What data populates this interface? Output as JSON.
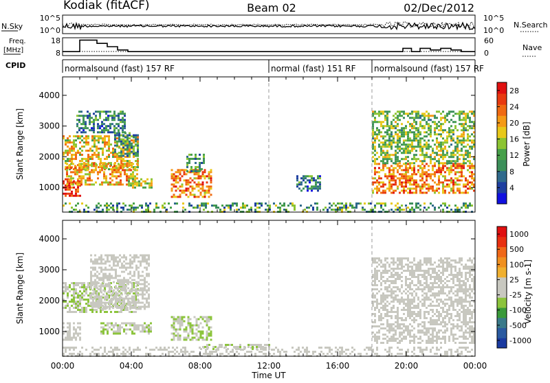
{
  "header": {
    "station": "Kodiak (fitACF)",
    "beam": "Beam 02",
    "date": "02/Dec/2012"
  },
  "noise_panel": {
    "left_label": "N.Sky",
    "right_label": "N.Search",
    "left_ticks": [
      "10^5",
      "10^0"
    ],
    "right_ticks": [
      "10^5",
      "10^0"
    ]
  },
  "freq_panel": {
    "left_label_line1": "Freq.",
    "left_label_line2": "[MHz]",
    "right_label": "Nave",
    "left_ticks": [
      "18",
      "8"
    ],
    "right_ticks": [
      "60",
      "0"
    ],
    "freq_steps": [
      {
        "t": 0,
        "v": 10
      },
      {
        "t": 1.0,
        "v": 17
      },
      {
        "t": 2.0,
        "v": 15
      },
      {
        "t": 2.6,
        "v": 13
      },
      {
        "t": 3.2,
        "v": 11
      },
      {
        "t": 3.8,
        "v": 10
      },
      {
        "t": 12.0,
        "v": 10
      },
      {
        "t": 18.0,
        "v": 10
      },
      {
        "t": 19.8,
        "v": 12
      },
      {
        "t": 20.3,
        "v": 10
      },
      {
        "t": 20.8,
        "v": 12
      },
      {
        "t": 21.4,
        "v": 11
      },
      {
        "t": 22.0,
        "v": 12
      },
      {
        "t": 22.6,
        "v": 11
      },
      {
        "t": 23.2,
        "v": 10
      },
      {
        "t": 24.0,
        "v": 10
      }
    ]
  },
  "cpid": {
    "label": "CPID",
    "segments": [
      {
        "start": 0,
        "end": 12,
        "text": "normalsound (fast) 157 RF"
      },
      {
        "start": 12,
        "end": 18,
        "text": "normal (fast) 151 RF"
      },
      {
        "start": 18,
        "end": 24,
        "text": "normalsound (fast) 157 RF"
      }
    ]
  },
  "chart_data": [
    {
      "type": "heatmap",
      "title": "",
      "xlabel": "Time UT",
      "ylabel": "Slant Range [km]",
      "xlim": [
        0,
        24
      ],
      "ylim": [
        200,
        4600
      ],
      "x_ticks": [
        "00:00",
        "04:00",
        "08:00",
        "12:00",
        "16:00",
        "20:00",
        "00:00"
      ],
      "y_ticks": [
        1000,
        2000,
        3000,
        4000
      ],
      "colorbar": {
        "label": "Power [dB]",
        "ticks": [
          4,
          8,
          12,
          16,
          20,
          24,
          28
        ],
        "range": [
          0,
          30
        ],
        "colors": [
          "#1010e0",
          "#1e3fa0",
          "#2f6a8c",
          "#3c8f5a",
          "#47a04a",
          "#8cc432",
          "#e8c81a",
          "#f59a16",
          "#f06a12",
          "#e83a10",
          "#e01010"
        ]
      },
      "regions": [
        {
          "t0": 0.0,
          "t1": 1.0,
          "r0": 700,
          "r1": 1300,
          "val": 26
        },
        {
          "t0": 0.0,
          "t1": 4.4,
          "r0": 1600,
          "r1": 2700,
          "val": 18
        },
        {
          "t0": 3.0,
          "t1": 4.4,
          "r0": 2000,
          "r1": 2800,
          "val": 10
        },
        {
          "t0": 0.8,
          "t1": 3.6,
          "r0": 2800,
          "r1": 3500,
          "val": 8
        },
        {
          "t0": 0.2,
          "t1": 4.4,
          "r0": 1100,
          "r1": 1800,
          "val": 20
        },
        {
          "t0": 3.8,
          "t1": 5.2,
          "r0": 1000,
          "r1": 1300,
          "val": 16
        },
        {
          "t0": 6.3,
          "t1": 8.6,
          "r0": 700,
          "r1": 1600,
          "val": 22
        },
        {
          "t0": 7.2,
          "t1": 8.2,
          "r0": 1500,
          "r1": 2100,
          "val": 10
        },
        {
          "t0": 13.6,
          "t1": 15.0,
          "r0": 900,
          "r1": 1400,
          "val": 8
        },
        {
          "t0": 18.0,
          "t1": 24.0,
          "r0": 800,
          "r1": 1800,
          "val": 22
        },
        {
          "t0": 18.0,
          "t1": 24.0,
          "r0": 1800,
          "r1": 3500,
          "val": 14
        }
      ]
    },
    {
      "type": "heatmap",
      "title": "",
      "xlabel": "Time UT",
      "ylabel": "Slant Range [km]",
      "xlim": [
        0,
        24
      ],
      "ylim": [
        200,
        4600
      ],
      "x_ticks": [
        "00:00",
        "04:00",
        "08:00",
        "12:00",
        "16:00",
        "20:00",
        "00:00"
      ],
      "y_ticks": [
        1000,
        2000,
        3000,
        4000
      ],
      "colorbar": {
        "label": "Velocity [m s-1]",
        "ticks": [
          1000,
          500,
          100,
          25,
          -25,
          -100,
          -500,
          -1000
        ],
        "range": [
          -1000,
          1000
        ],
        "colors": [
          "#1a3aa0",
          "#2a5aa0",
          "#3a7a8a",
          "#3a9a3a",
          "#8cc43c",
          "#c8c8c0",
          "#c8c8c0",
          "#f0b030",
          "#f09020",
          "#f06818",
          "#e83010",
          "#e01010"
        ]
      },
      "regions": [
        {
          "t0": 0.0,
          "t1": 1.0,
          "r0": 700,
          "r1": 1300,
          "val": 0
        },
        {
          "t0": 0.0,
          "t1": 4.4,
          "r0": 1600,
          "r1": 2600,
          "val": -150
        },
        {
          "t0": 1.6,
          "t1": 5.0,
          "r0": 1700,
          "r1": 3500,
          "val": 0
        },
        {
          "t0": 2.2,
          "t1": 5.2,
          "r0": 900,
          "r1": 1300,
          "val": -150
        },
        {
          "t0": 6.3,
          "t1": 8.6,
          "r0": 700,
          "r1": 1500,
          "val": -150
        },
        {
          "t0": 8.0,
          "t1": 12.0,
          "r0": 400,
          "r1": 600,
          "val": -120
        },
        {
          "t0": 18.0,
          "t1": 24.0,
          "r0": 600,
          "r1": 2000,
          "val": 0
        },
        {
          "t0": 18.0,
          "t1": 24.0,
          "r0": 2000,
          "r1": 3400,
          "val": 10
        }
      ]
    }
  ]
}
